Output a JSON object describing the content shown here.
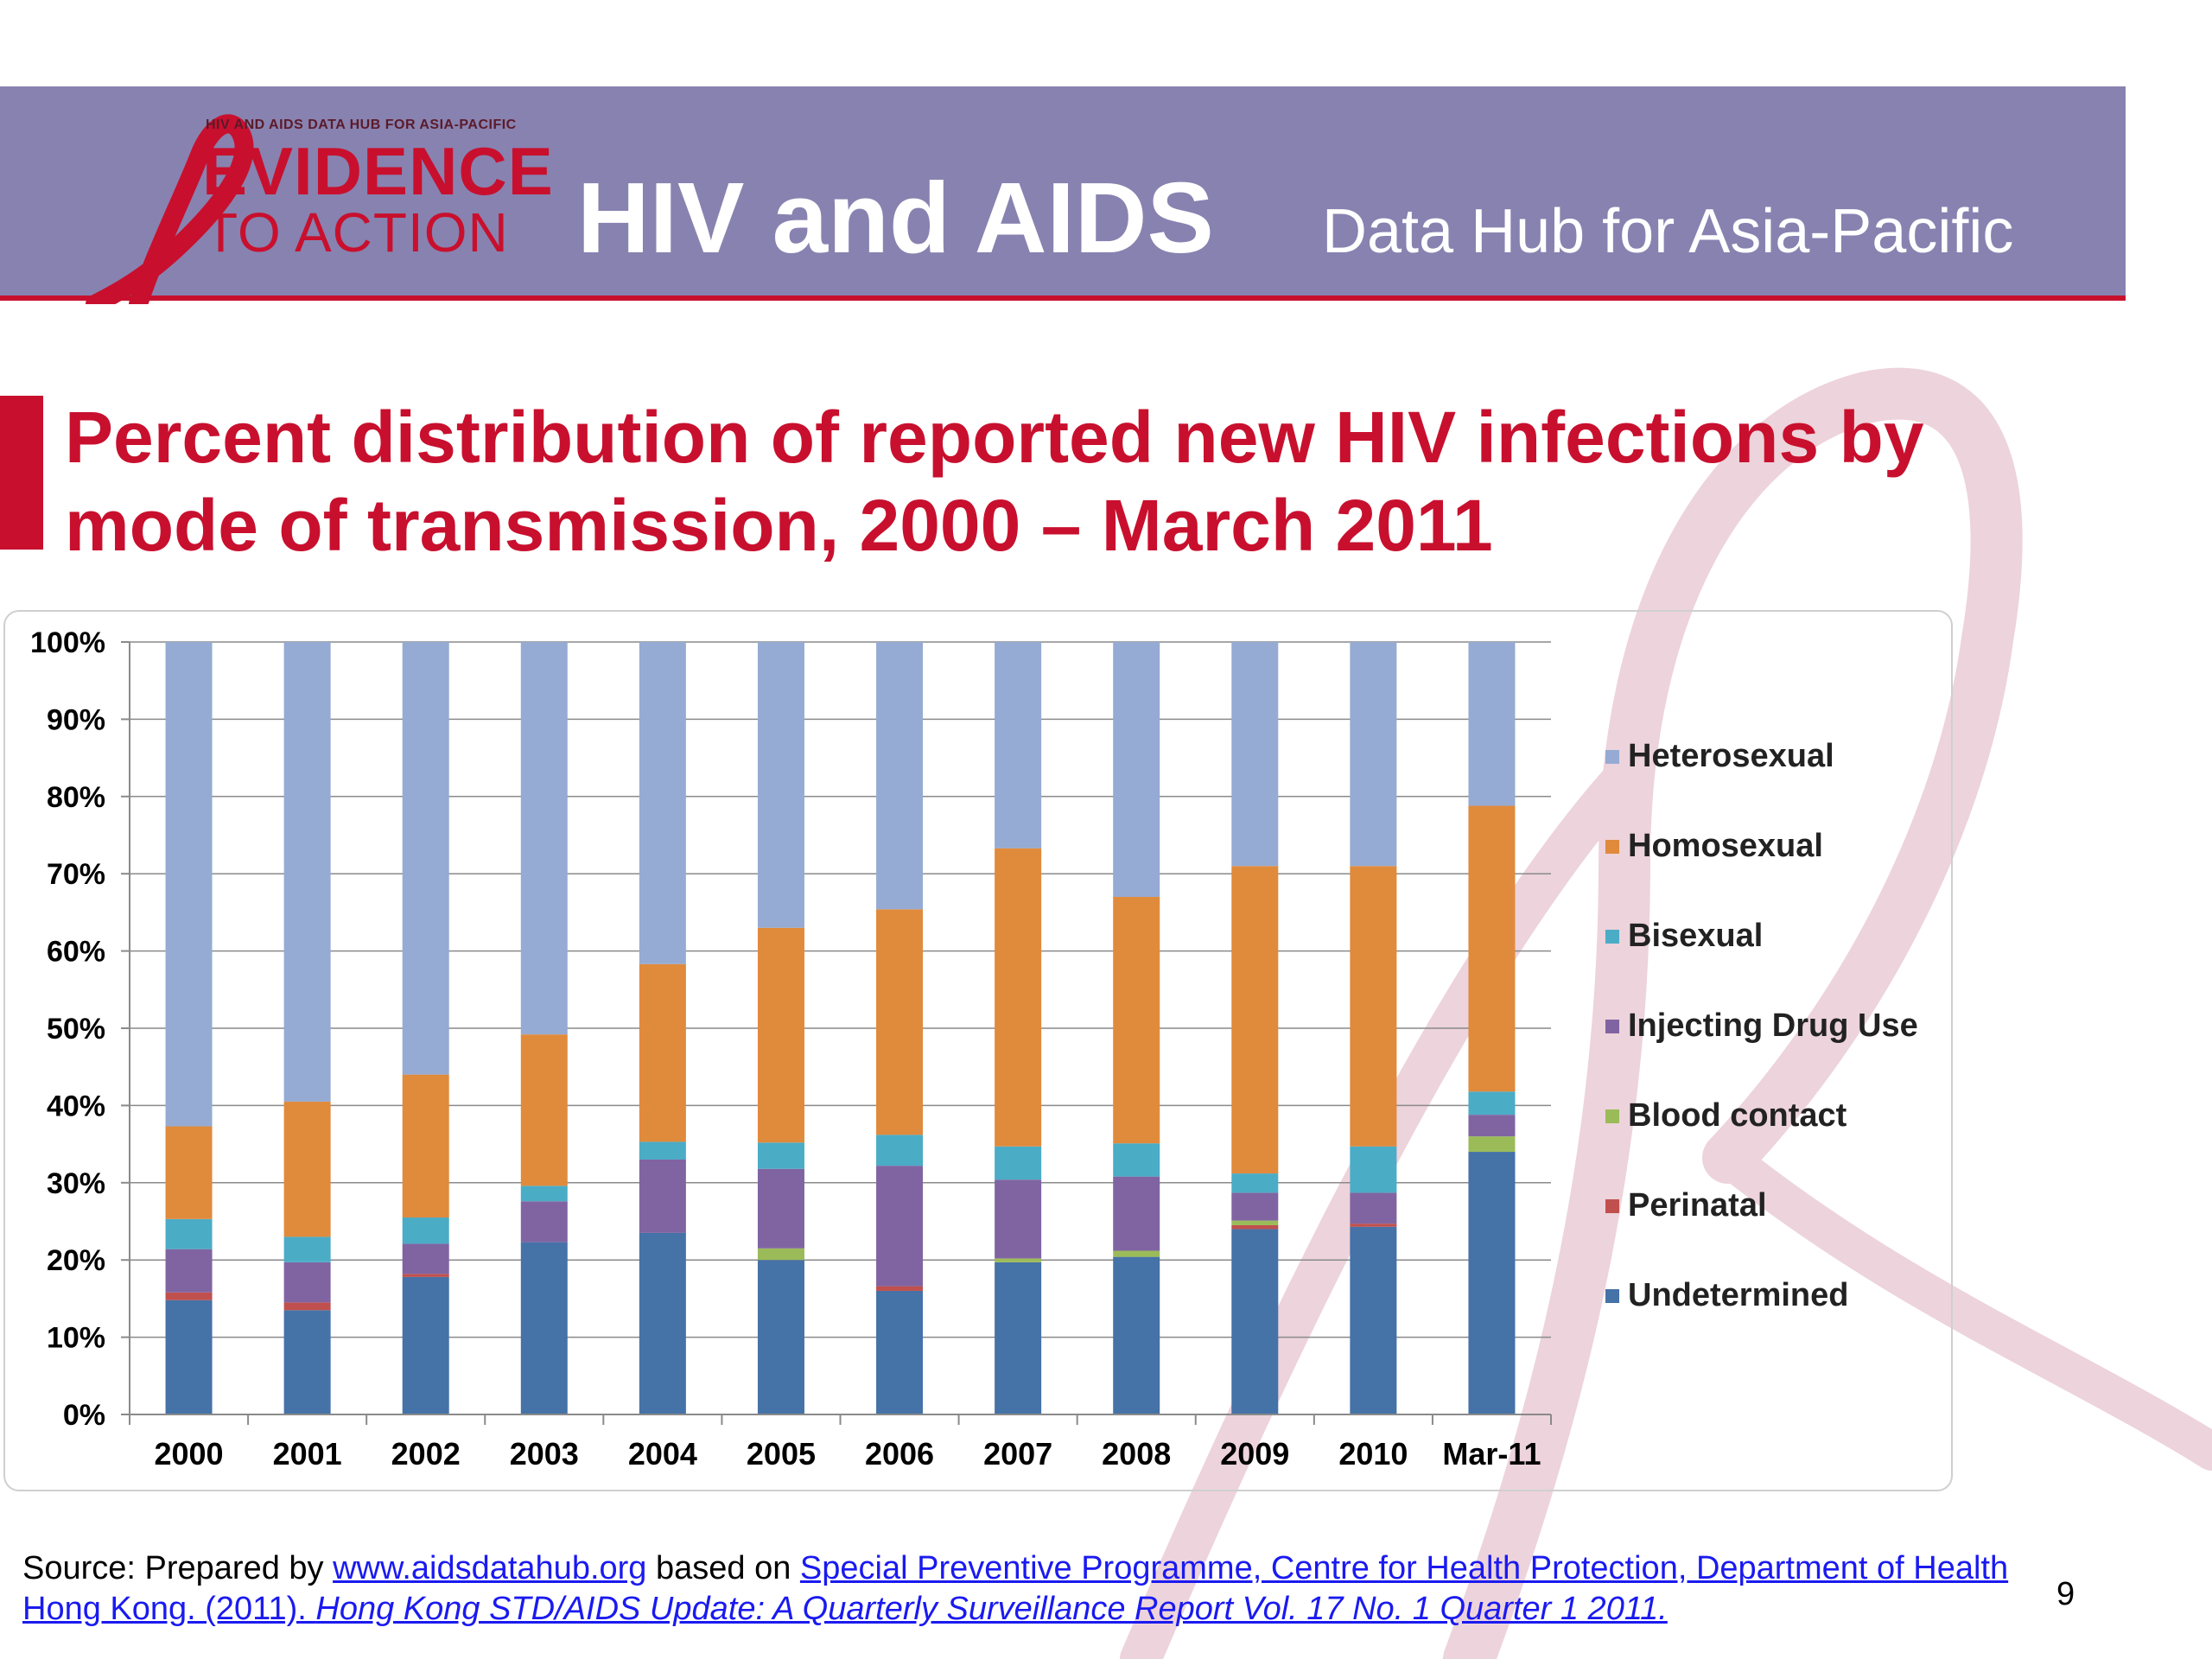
{
  "header": {
    "logo_small_text": "HIV AND AIDS DATA HUB FOR ASIA-PACIFIC",
    "logo_line1": "EVIDENCE",
    "logo_line2": "TO ACTION",
    "main_title": "HIV and AIDS",
    "subtitle": "Data Hub for Asia-Pacific"
  },
  "slide_title": "Percent distribution of reported new HIV infections by mode of transmission, 2000 – March 2011",
  "chart_data": {
    "type": "bar",
    "stacked": true,
    "percent": true,
    "title": "",
    "xlabel": "",
    "ylabel": "",
    "ylim": [
      0,
      100
    ],
    "yticks": [
      "0%",
      "10%",
      "20%",
      "30%",
      "40%",
      "50%",
      "60%",
      "70%",
      "80%",
      "90%",
      "100%"
    ],
    "categories": [
      "2000",
      "2001",
      "2002",
      "2003",
      "2004",
      "2005",
      "2006",
      "2007",
      "2008",
      "2009",
      "2010",
      "Mar-11"
    ],
    "series": [
      {
        "name": "Undetermined",
        "color": "#4572a7",
        "values": [
          14.8,
          13.5,
          17.8,
          22.3,
          23.5,
          20.0,
          16.0,
          19.7,
          20.4,
          24.0,
          24.3,
          34.0
        ]
      },
      {
        "name": "Perinatal",
        "color": "#c0504d",
        "values": [
          1.0,
          1.0,
          0.4,
          0.0,
          0.0,
          0.0,
          0.6,
          0.0,
          0.0,
          0.5,
          0.4,
          0.0
        ]
      },
      {
        "name": "Blood contact",
        "color": "#9bbb59",
        "values": [
          0.0,
          0.0,
          0.0,
          0.0,
          0.0,
          1.5,
          0.0,
          0.5,
          0.8,
          0.6,
          0.0,
          2.0
        ]
      },
      {
        "name": "Injecting Drug Use",
        "color": "#8064a2",
        "values": [
          5.6,
          5.2,
          3.9,
          5.3,
          9.5,
          10.3,
          15.6,
          10.2,
          9.6,
          3.6,
          4.0,
          2.8
        ]
      },
      {
        "name": "Bisexual",
        "color": "#4bacc6",
        "values": [
          3.9,
          3.3,
          3.4,
          2.0,
          2.3,
          3.4,
          4.0,
          4.3,
          4.3,
          2.5,
          6.0,
          3.0
        ]
      },
      {
        "name": "Homosexual",
        "color": "#e08a3c",
        "values": [
          12.0,
          17.5,
          18.5,
          19.6,
          23.0,
          27.8,
          29.2,
          38.6,
          31.9,
          39.8,
          36.3,
          37.0
        ]
      },
      {
        "name": "Heterosexual",
        "color": "#95abd3",
        "values": [
          62.7,
          59.5,
          56.0,
          50.8,
          41.7,
          37.0,
          34.6,
          26.7,
          33.0,
          29.0,
          29.0,
          21.2
        ]
      }
    ],
    "legend_position": "right",
    "grid": true
  },
  "source": {
    "prefix": "Source: Prepared by ",
    "link1": "www.aidsdatahub.org",
    "middle": "  based on ",
    "link2": "Special Preventive Programme, Centre for Health Protection, Department of Health Hong Kong. (2011). ",
    "link2_italic": "Hong Kong STD/AIDS Update: A Quarterly Surveillance Report Vol. 17 No. 1 Quarter 1 2011."
  },
  "page_number": "9",
  "colors": {
    "banner": "#8882b0",
    "accent_red": "#c8102e",
    "link": "#1a1af0"
  }
}
